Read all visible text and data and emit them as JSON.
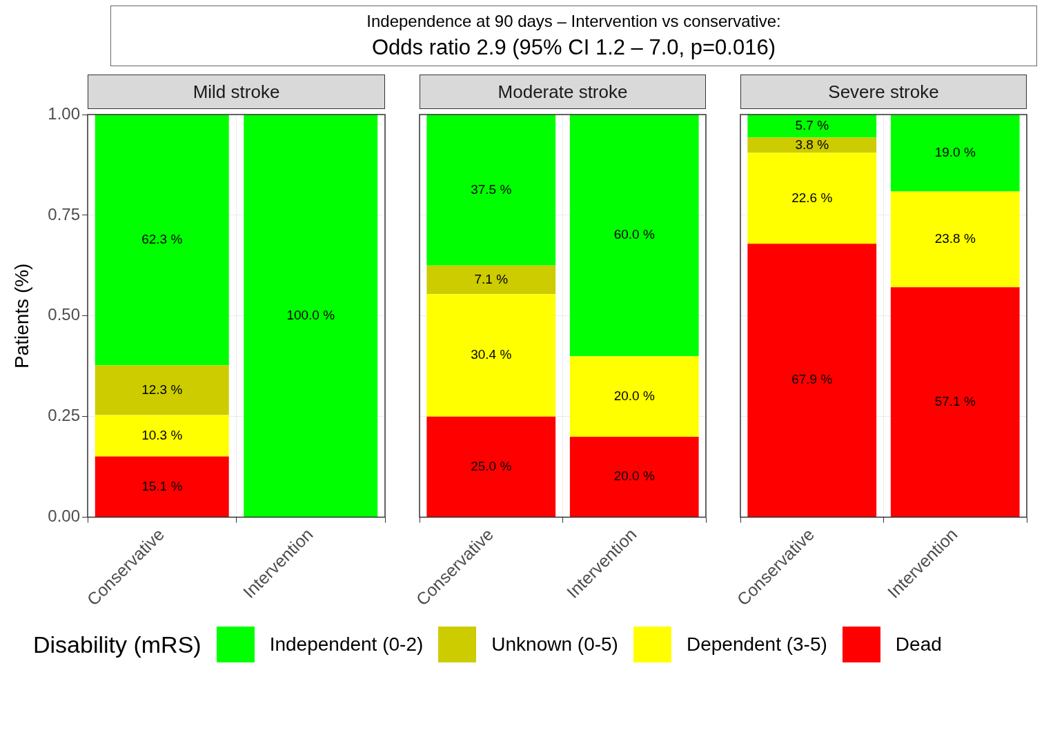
{
  "chart_data": [
    {
      "type": "other",
      "title": "Independence at 90 days – Intervention vs conservative:",
      "subtitle": "Odds ratio 2.9 (95% CI 1.2 – 7.0, p=0.016)"
    },
    {
      "type": "bar",
      "title": "Mild stroke",
      "ylabel": "Patients (%)",
      "categories": [
        "Conservative",
        "Intervention"
      ],
      "stacked": true,
      "grid": true,
      "legend": "bottom",
      "legend_title": "Disability (mRS)",
      "ylim": [
        0,
        1
      ],
      "yticks": [
        {
          "value": 0,
          "label": "0.00"
        },
        {
          "value": 0.25,
          "label": "0.25"
        },
        {
          "value": 0.5,
          "label": "0.50"
        },
        {
          "value": 0.75,
          "label": "0.75"
        },
        {
          "value": 1,
          "label": "1.00"
        }
      ],
      "series": [
        {
          "name": "Dead",
          "color": "#ff0000",
          "values": [
            0.151,
            0
          ],
          "value_labels": [
            "15.1 %",
            null
          ]
        },
        {
          "name": "Dependent (3-5)",
          "color": "#ffff00",
          "values": [
            0.103,
            0
          ],
          "value_labels": [
            "10.3 %",
            null
          ]
        },
        {
          "name": "Unknown (0-5)",
          "color": "#cccc00",
          "values": [
            0.123,
            0
          ],
          "value_labels": [
            "12.3 %",
            null
          ]
        },
        {
          "name": "Independent (0-2)",
          "color": "#00ff00",
          "values": [
            0.623,
            1.0
          ],
          "value_labels": [
            "62.3 %",
            "100.0 %"
          ]
        }
      ]
    },
    {
      "type": "bar",
      "title": "Moderate stroke",
      "categories": [
        "Conservative",
        "Intervention"
      ],
      "stacked": true,
      "grid": true,
      "tick_labels": "x",
      "ylim": [
        0,
        1
      ],
      "yticks": [
        0,
        0.25,
        0.5,
        0.75,
        1
      ],
      "series": [
        {
          "color": "#ff0000",
          "values": [
            0.25,
            0.2
          ],
          "value_labels": [
            "25.0 %",
            "20.0 %"
          ]
        },
        {
          "color": "#ffff00",
          "values": [
            0.304,
            0.2
          ],
          "value_labels": [
            "30.4 %",
            "20.0 %"
          ]
        },
        {
          "color": "#cccc00",
          "values": [
            0.071,
            0
          ],
          "value_labels": [
            "7.1 %",
            null
          ]
        },
        {
          "color": "#00ff00",
          "values": [
            0.375,
            0.6
          ],
          "value_labels": [
            "37.5 %",
            "60.0 %"
          ]
        }
      ]
    },
    {
      "type": "bar",
      "title": "Severe stroke",
      "categories": [
        "Conservative",
        "Intervention"
      ],
      "stacked": true,
      "grid": true,
      "tick_labels": "x",
      "ylim": [
        0,
        1
      ],
      "yticks": [
        0,
        0.25,
        0.5,
        0.75,
        1
      ],
      "series": [
        {
          "color": "#ff0000",
          "values": [
            0.679,
            0.571
          ],
          "value_labels": [
            "67.9 %",
            "57.1 %"
          ]
        },
        {
          "color": "#ffff00",
          "values": [
            0.226,
            0.238
          ],
          "value_labels": [
            "22.6 %",
            "23.8 %"
          ]
        },
        {
          "color": "#cccc00",
          "values": [
            0.038,
            0
          ],
          "value_labels": [
            "3.8 %",
            null
          ]
        },
        {
          "color": "#00ff00",
          "values": [
            0.057,
            0.19
          ],
          "value_labels": [
            "5.7 %",
            "19.0 %"
          ]
        }
      ]
    }
  ]
}
